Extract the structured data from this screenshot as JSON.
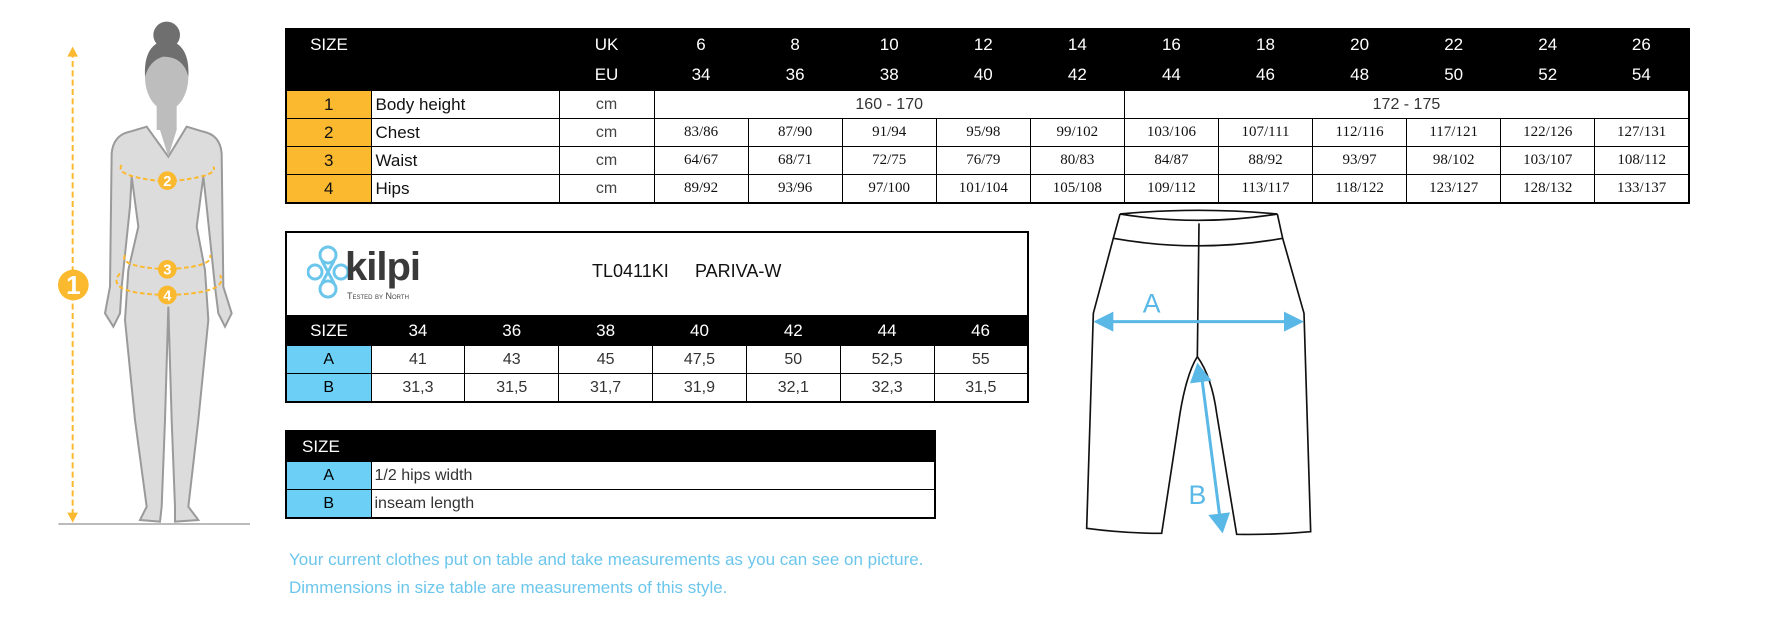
{
  "colors": {
    "orange": "#fbb92f",
    "blue": "#6ccff6",
    "note": "#6cc6ec"
  },
  "body_table": {
    "size_label": "SIZE",
    "uk_label": "UK",
    "eu_label": "EU",
    "uk": [
      "6",
      "8",
      "10",
      "12",
      "14",
      "16",
      "18",
      "20",
      "22",
      "24",
      "26"
    ],
    "eu": [
      "34",
      "36",
      "38",
      "40",
      "42",
      "44",
      "46",
      "48",
      "50",
      "52",
      "54"
    ],
    "body_height": {
      "num": "1",
      "label": "Body height",
      "unit": "cm",
      "range1": "160 - 170",
      "range2": "172 - 175"
    },
    "rows": [
      {
        "num": "2",
        "label": "Chest",
        "unit": "cm",
        "values": [
          "83/86",
          "87/90",
          "91/94",
          "95/98",
          "99/102",
          "103/106",
          "107/111",
          "112/116",
          "117/121",
          "122/126",
          "127/131"
        ]
      },
      {
        "num": "3",
        "label": "Waist",
        "unit": "cm",
        "values": [
          "64/67",
          "68/71",
          "72/75",
          "76/79",
          "80/83",
          "84/87",
          "88/92",
          "93/97",
          "98/102",
          "103/107",
          "108/112"
        ]
      },
      {
        "num": "4",
        "label": "Hips",
        "unit": "cm",
        "values": [
          "89/92",
          "93/96",
          "97/100",
          "101/104",
          "105/108",
          "109/112",
          "113/117",
          "118/122",
          "123/127",
          "128/132",
          "133/137"
        ]
      }
    ]
  },
  "product": {
    "brand": "kilpi",
    "tagline": "Tested by North",
    "code": "TL0411KI",
    "model": "PARIVA-W",
    "size_label": "SIZE",
    "sizes": [
      "34",
      "36",
      "38",
      "40",
      "42",
      "44",
      "46"
    ],
    "rows": [
      {
        "key": "A",
        "values": [
          "41",
          "43",
          "45",
          "47,5",
          "50",
          "52,5",
          "55"
        ]
      },
      {
        "key": "B",
        "values": [
          "31,3",
          "31,5",
          "31,7",
          "31,9",
          "32,1",
          "32,3",
          "31,5"
        ]
      }
    ]
  },
  "legend": {
    "size_label": "SIZE",
    "rows": [
      {
        "key": "A",
        "text": "1/2 hips width"
      },
      {
        "key": "B",
        "text": "inseam length"
      }
    ]
  },
  "figure": {
    "markers": [
      "1",
      "2",
      "3",
      "4"
    ]
  },
  "pants": {
    "labels": [
      "A",
      "B"
    ]
  },
  "notes": [
    "Your current clothes put on table and take measurements as you can see on picture.",
    "Dimmensions in size table are measurements of this style."
  ]
}
